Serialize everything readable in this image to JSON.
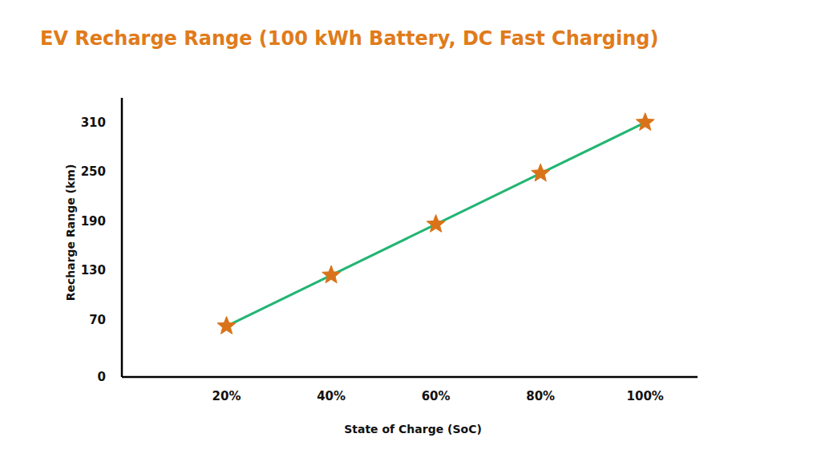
{
  "chart_data": {
    "type": "line",
    "title": "EV Recharge Range (100 kWh Battery, DC Fast Charging)",
    "x_label": "State of Charge (SoC)",
    "y_label": "Recharge Range (km)",
    "x": [
      20,
      40,
      60,
      80,
      100
    ],
    "values": [
      62,
      124,
      186,
      248,
      310
    ],
    "color": "#22b573",
    "marker": "star",
    "xlim": [
      0,
      110
    ],
    "xticks": [
      {
        "value": 20,
        "label": "20%"
      },
      {
        "value": 40,
        "label": "40%"
      },
      {
        "value": 60,
        "label": "60%"
      },
      {
        "value": 80,
        "label": "80%"
      },
      {
        "value": 100,
        "label": "100%"
      }
    ],
    "ylim": [
      0,
      340
    ],
    "yticks": [
      0,
      70,
      130,
      190,
      250,
      310
    ],
    "grid": false
  }
}
